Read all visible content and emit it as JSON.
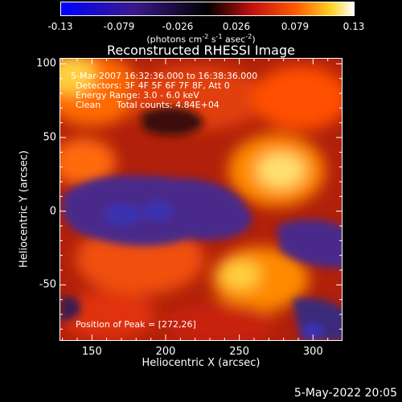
{
  "colorbar": {
    "ticks": [
      "-0.13",
      "-0.079",
      "-0.026",
      "0.026",
      "0.079",
      "0.13"
    ],
    "unit_parts": [
      "(photons cm",
      "-2",
      " s",
      "-1",
      " asec",
      "-2",
      ")"
    ]
  },
  "chart_data": {
    "type": "heatmap",
    "title": "Reconstructed RHESSI Image",
    "xlabel": "Heliocentric X (arcsec)",
    "ylabel": "Heliocentric Y (arcsec)",
    "xlim": [
      128,
      320
    ],
    "ylim": [
      -88,
      104
    ],
    "xticks": [
      150,
      200,
      250,
      300
    ],
    "yticks": [
      -50,
      0,
      50,
      100
    ],
    "colorbar_range": [
      -0.13,
      0.13
    ],
    "peak_position": [
      272,
      26
    ]
  },
  "info": {
    "time": "5-Mar-2007 16:32:36.000 to 16:38:36.000",
    "detectors": "Detectors: 3F 4F 5F 6F 7F 8F, Att 0",
    "energy": "Energy Range: 3.0 - 6.0 keV",
    "clean": "Clean",
    "counts": "Total counts: 4.84E+04",
    "peak": "Position of Peak = [272,26]"
  },
  "footer": {
    "date": "5-May-2022 20:05"
  }
}
